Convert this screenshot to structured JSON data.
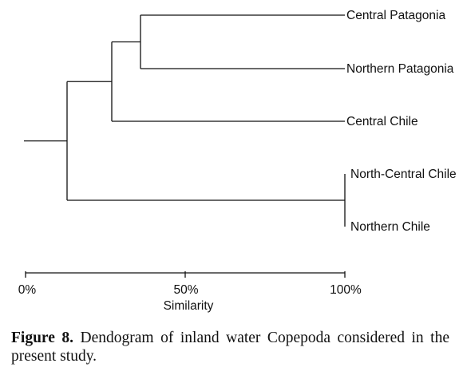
{
  "dendrogram": {
    "leaves": [
      {
        "label": "Central Patagonia"
      },
      {
        "label": "Northern Patagonia"
      },
      {
        "label": "Central Chile"
      },
      {
        "label": "North-Central Chile"
      },
      {
        "label": "Northern Chile"
      }
    ],
    "merges": [
      {
        "a": "leaf0",
        "b": "leaf1",
        "similarity": 36
      },
      {
        "a": "m0",
        "b": "leaf2",
        "similarity": 27
      },
      {
        "a": "leaf3",
        "b": "leaf4",
        "similarity": 100
      },
      {
        "a": "m1",
        "b": "m2",
        "similarity": 13
      }
    ],
    "axis": {
      "min": 0,
      "max": 100,
      "ticks": [
        {
          "value": 0,
          "label": "0%"
        },
        {
          "value": 50,
          "label": "50%"
        },
        {
          "value": 100,
          "label": "100%"
        }
      ],
      "title": "Similarity"
    },
    "line_color": "#111111"
  },
  "caption": {
    "label": "Figure 8.",
    "text": " Dendogram of inland water Copepoda considered in the present study."
  }
}
